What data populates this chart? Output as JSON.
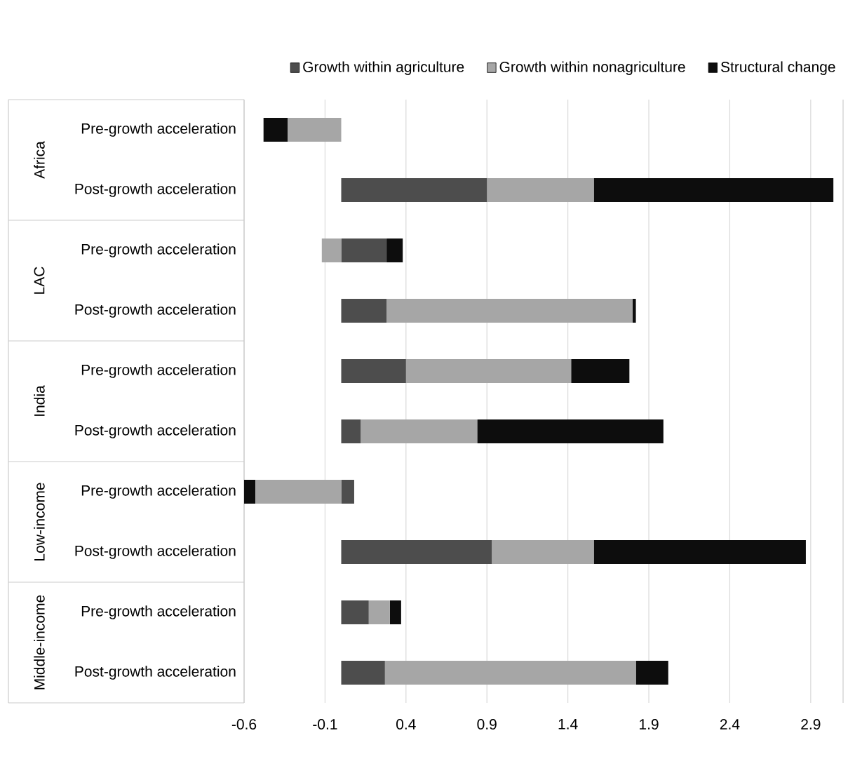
{
  "chart_data": {
    "type": "bar",
    "orientation": "horizontal",
    "stacked": true,
    "categories": [
      "Pre-growth acceleration",
      "Post-growth acceleration",
      "Pre-growth acceleration",
      "Post-growth acceleration",
      "Pre-growth acceleration",
      "Post-growth acceleration",
      "Pre-growth acceleration",
      "Post-growth acceleration",
      "Pre-growth acceleration",
      "Post-growth acceleration"
    ],
    "series": [
      {
        "name": "Growth within agriculture",
        "color": "#4d4d4d",
        "values": [
          0,
          0.9,
          0.28,
          0.28,
          0.4,
          0.12,
          0.08,
          0.93,
          0.17,
          0.27
        ]
      },
      {
        "name": "Growth within nonagriculture",
        "color": "#a6a6a6",
        "values": [
          -0.33,
          0.66,
          -0.12,
          1.52,
          1.02,
          0.72,
          -0.53,
          0.63,
          0.13,
          1.55
        ]
      },
      {
        "name": "Structural change",
        "color": "#0d0d0d",
        "values": [
          -0.15,
          1.48,
          0.1,
          0.02,
          0.36,
          1.15,
          -0.07,
          1.31,
          0.07,
          0.2
        ]
      }
    ],
    "annotations": [
      "Africa",
      "LAC",
      "India",
      "Low-income",
      "Middle-income"
    ],
    "xlim": [
      -0.6,
      3.1
    ],
    "xticks": [
      -0.6,
      -0.1,
      0.4,
      0.9,
      1.4,
      1.9,
      2.4,
      2.9
    ],
    "grid": "x",
    "legend": "top right"
  }
}
